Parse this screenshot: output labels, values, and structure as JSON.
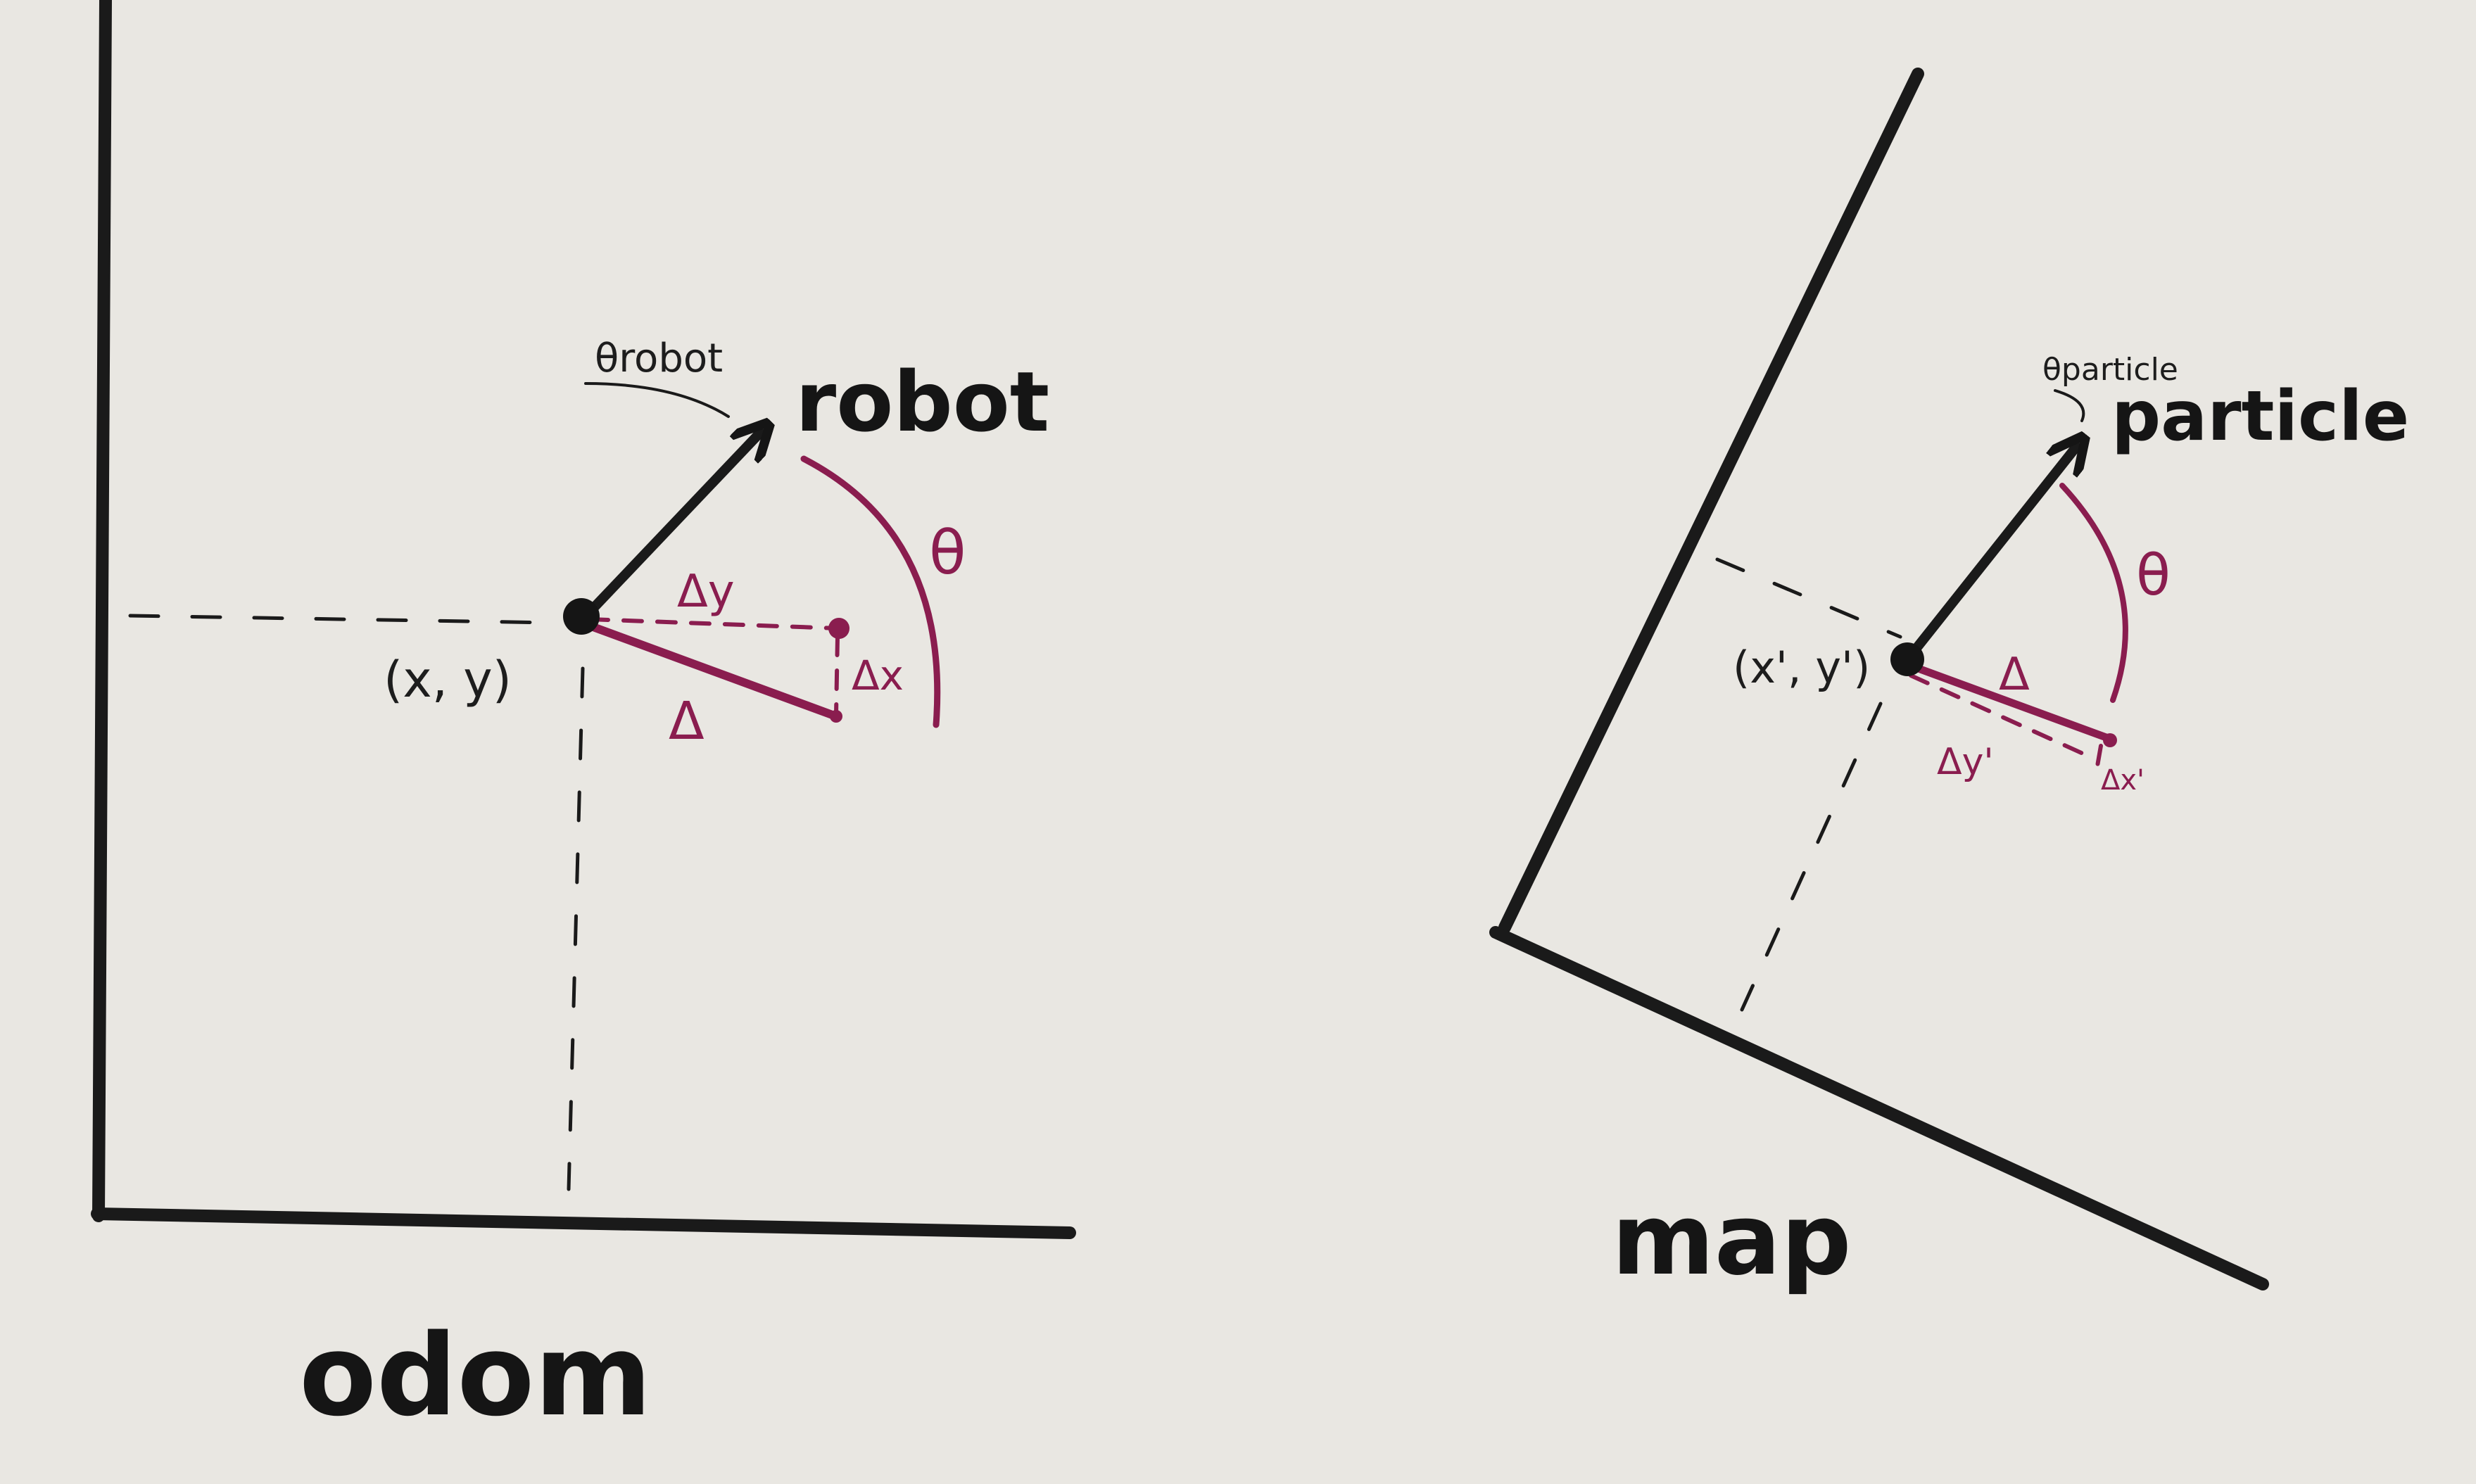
{
  "odom": {
    "frame_label": "odom",
    "body_label": "robot",
    "heading_label": "θrobot",
    "position_label": "(x, y)",
    "angle_label": "θ",
    "delta_y_label": "Δy",
    "delta_x_label": "Δx",
    "delta_label": "Δ"
  },
  "map": {
    "frame_label": "map",
    "body_label": "particle",
    "heading_label": "θparticle",
    "position_label": "(x', y')",
    "angle_label": "θ",
    "delta_label": "Δ",
    "delta_y_label": "Δy'",
    "delta_x_label": "Δx'"
  },
  "colors": {
    "ink": "#1a1a1a",
    "accent": "#8a1d4f",
    "paper": "#e9e7e2"
  }
}
